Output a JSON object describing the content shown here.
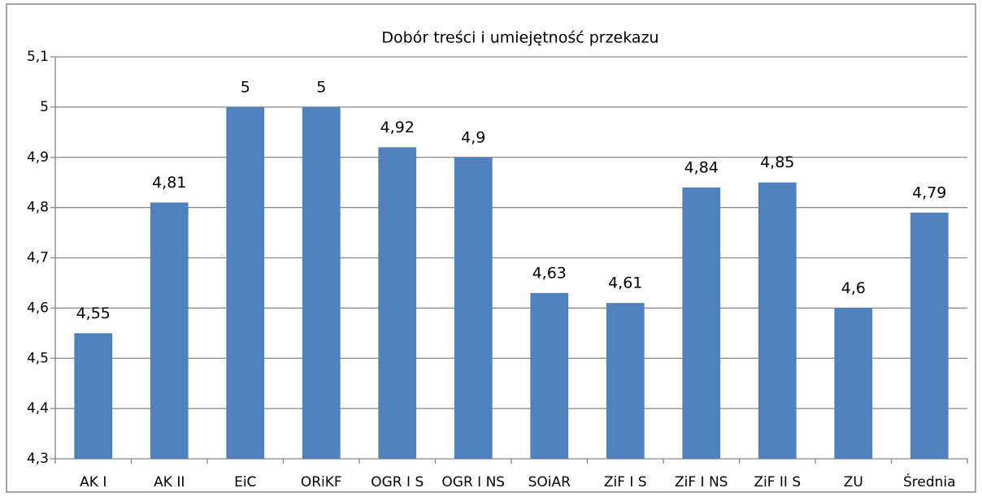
{
  "chart_data": {
    "type": "bar",
    "title": "Dobór treści i umiejętność przekazu",
    "categories": [
      "AK I",
      "AK II",
      "EiC",
      "ORiKF",
      "OGR I S",
      "OGR I NS",
      "SOiAR",
      "ZiF I S",
      "ZiF I NS",
      "ZiF II S",
      "ZU",
      "Średnia"
    ],
    "values": [
      4.55,
      4.81,
      5,
      5,
      4.92,
      4.9,
      4.63,
      4.61,
      4.84,
      4.85,
      4.6,
      4.79
    ],
    "value_labels": [
      "4,55",
      "4,81",
      "5",
      "5",
      "4,92",
      "4,9",
      "4,63",
      "4,61",
      "4,84",
      "4,85",
      "4,6",
      "4,79"
    ],
    "color": "#4f81bd",
    "ylim": [
      4.3,
      5.1
    ],
    "yticks": [
      {
        "value": 4.3,
        "label": "4,3"
      },
      {
        "value": 4.4,
        "label": "4,4"
      },
      {
        "value": 4.5,
        "label": "4,5"
      },
      {
        "value": 4.6,
        "label": "4,6"
      },
      {
        "value": 4.7,
        "label": "4,7"
      },
      {
        "value": 4.8,
        "label": "4,8"
      },
      {
        "value": 4.9,
        "label": "4,9"
      },
      5,
      {
        "value": 5.1,
        "label": "5,1"
      }
    ],
    "grid": true
  }
}
